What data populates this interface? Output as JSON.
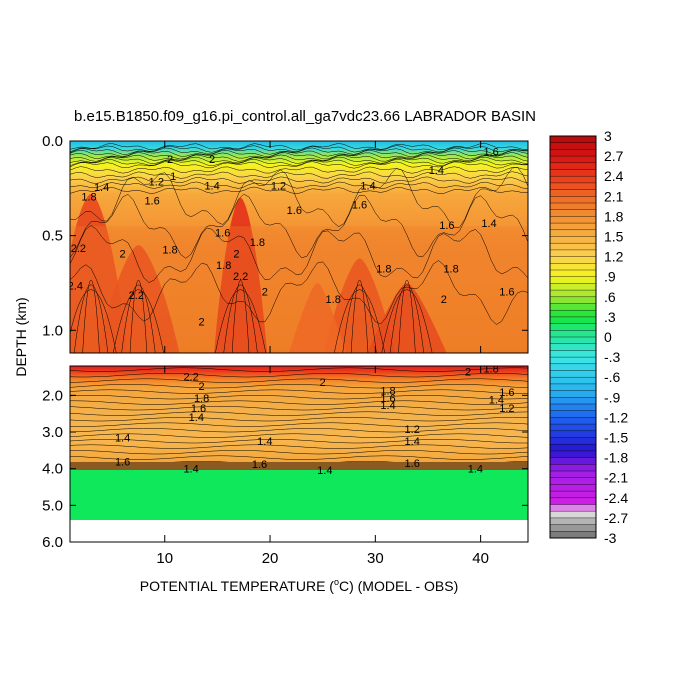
{
  "chart_data": {
    "type": "heatmap",
    "title": "b.e15.B1850.f09_g16.pi_control.all_ga7vdc23.66 LABRADOR BASIN",
    "xlabel": "POTENTIAL TEMPERATURE (°C) (MODEL - OBS)",
    "xlabel_parts": [
      "POTENTIAL TEMPERATURE (",
      "o",
      "C) (MODEL - OBS)"
    ],
    "ylabel": "DEPTH (km)",
    "xlim": [
      1,
      44.5
    ],
    "x_ticks": [
      10,
      20,
      30,
      40
    ],
    "x_tick_labels": [
      "10",
      "20",
      "30",
      "40"
    ],
    "upper_panel": {
      "ylim": [
        0,
        1.12
      ],
      "y_ticks": [
        0.0,
        0.5,
        1.0
      ],
      "y_tick_labels": [
        "0.0",
        "0.5",
        "1.0"
      ]
    },
    "lower_panel": {
      "ylim": [
        1.2,
        6.0
      ],
      "y_ticks": [
        2.0,
        3.0,
        4.0,
        5.0,
        6.0
      ],
      "y_tick_labels": [
        "2.0",
        "3.0",
        "4.0",
        "5.0",
        "6.0"
      ],
      "data_bottom_depth": 5.35
    },
    "colorbar": {
      "min": -3,
      "max": 3,
      "step": 0.1,
      "labels": [
        "3",
        "2.7",
        "2.4",
        "2.1",
        "1.8",
        "1.5",
        "1.2",
        ".9",
        ".6",
        ".3",
        "0",
        "-.3",
        "-.6",
        "-.9",
        "-1.2",
        "-1.5",
        "-1.8",
        "-2.1",
        "-2.4",
        "-2.7",
        "-3"
      ],
      "label_values": [
        3,
        2.7,
        2.4,
        2.1,
        1.8,
        1.5,
        1.2,
        0.9,
        0.6,
        0.3,
        0,
        -0.3,
        -0.6,
        -0.9,
        -1.2,
        -1.5,
        -1.8,
        -2.1,
        -2.4,
        -2.7,
        -3
      ]
    },
    "contour_labels_upper": [
      {
        "text": "1.8",
        "x": 2.8,
        "depth": 0.3
      },
      {
        "text": "2.2",
        "x": 1.8,
        "depth": 0.57
      },
      {
        "text": "2.4",
        "x": 1.5,
        "depth": 0.77
      },
      {
        "text": "2",
        "x": 6.0,
        "depth": 0.6
      },
      {
        "text": "2.2",
        "x": 7.3,
        "depth": 0.82
      },
      {
        "text": "1.4",
        "x": 4.0,
        "depth": 0.25
      },
      {
        "text": "1.2",
        "x": 9.2,
        "depth": 0.22
      },
      {
        "text": "1",
        "x": 10.8,
        "depth": 0.19
      },
      {
        "text": "1.6",
        "x": 8.8,
        "depth": 0.32
      },
      {
        "text": "1.8",
        "x": 10.5,
        "depth": 0.58
      },
      {
        "text": "1.4",
        "x": 14.5,
        "depth": 0.24
      },
      {
        "text": "1.6",
        "x": 15.5,
        "depth": 0.49
      },
      {
        "text": "1.8",
        "x": 15.6,
        "depth": 0.66
      },
      {
        "text": "2",
        "x": 16.8,
        "depth": 0.6
      },
      {
        "text": "2.2",
        "x": 17.2,
        "depth": 0.72
      },
      {
        "text": "1.8",
        "x": 18.8,
        "depth": 0.54
      },
      {
        "text": "2",
        "x": 19.5,
        "depth": 0.8
      },
      {
        "text": "2",
        "x": 13.5,
        "depth": 0.96
      },
      {
        "text": "1.2",
        "x": 20.8,
        "depth": 0.24
      },
      {
        "text": "1.6",
        "x": 22.3,
        "depth": 0.37
      },
      {
        "text": "1.8",
        "x": 26.0,
        "depth": 0.84
      },
      {
        "text": "1.6",
        "x": 28.5,
        "depth": 0.34
      },
      {
        "text": "1.4",
        "x": 29.3,
        "depth": 0.24
      },
      {
        "text": "1.8",
        "x": 30.8,
        "depth": 0.68
      },
      {
        "text": "2",
        "x": 36.5,
        "depth": 0.84
      },
      {
        "text": "1.6",
        "x": 36.8,
        "depth": 0.45
      },
      {
        "text": "1.8",
        "x": 37.2,
        "depth": 0.68
      },
      {
        "text": "1.4",
        "x": 40.8,
        "depth": 0.44
      },
      {
        "text": "1.6",
        "x": 42.5,
        "depth": 0.8
      },
      {
        "text": "1.4",
        "x": 35.8,
        "depth": 0.16
      },
      {
        "text": "2",
        "x": 10.5,
        "depth": 0.1
      },
      {
        "text": "2",
        "x": 14.5,
        "depth": 0.1
      },
      {
        "text": "1.6",
        "x": 41.0,
        "depth": 0.06
      }
    ],
    "contour_labels_lower": [
      {
        "text": "2.2",
        "x": 12.5,
        "depth": 1.52
      },
      {
        "text": "2",
        "x": 13.5,
        "depth": 1.78
      },
      {
        "text": "1.8",
        "x": 13.5,
        "depth": 2.1
      },
      {
        "text": "1.6",
        "x": 13.2,
        "depth": 2.37
      },
      {
        "text": "1.4",
        "x": 13.0,
        "depth": 2.62
      },
      {
        "text": "2",
        "x": 25.0,
        "depth": 1.67
      },
      {
        "text": "1.8",
        "x": 31.2,
        "depth": 1.9
      },
      {
        "text": "1.6",
        "x": 31.2,
        "depth": 2.1
      },
      {
        "text": "1.4",
        "x": 31.2,
        "depth": 2.3
      },
      {
        "text": "2",
        "x": 38.8,
        "depth": 1.38
      },
      {
        "text": "1.8",
        "x": 41.0,
        "depth": 1.3
      },
      {
        "text": "1.6",
        "x": 42.5,
        "depth": 1.94
      },
      {
        "text": "1.4",
        "x": 41.5,
        "depth": 2.15
      },
      {
        "text": "1.2",
        "x": 42.5,
        "depth": 2.38
      },
      {
        "text": "1.4",
        "x": 6.0,
        "depth": 3.18
      },
      {
        "text": "1.4",
        "x": 19.5,
        "depth": 3.28
      },
      {
        "text": "1.2",
        "x": 33.5,
        "depth": 2.95
      },
      {
        "text": "1.4",
        "x": 33.5,
        "depth": 3.28
      },
      {
        "text": "1.6",
        "x": 6.0,
        "depth": 3.83
      },
      {
        "text": "1.6",
        "x": 19.0,
        "depth": 3.9
      },
      {
        "text": "1.6",
        "x": 33.5,
        "depth": 3.88
      },
      {
        "text": "1.4",
        "x": 12.5,
        "depth": 4.03
      },
      {
        "text": "1.4",
        "x": 25.2,
        "depth": 4.06
      },
      {
        "text": "1.4",
        "x": 39.5,
        "depth": 4.03
      }
    ]
  }
}
